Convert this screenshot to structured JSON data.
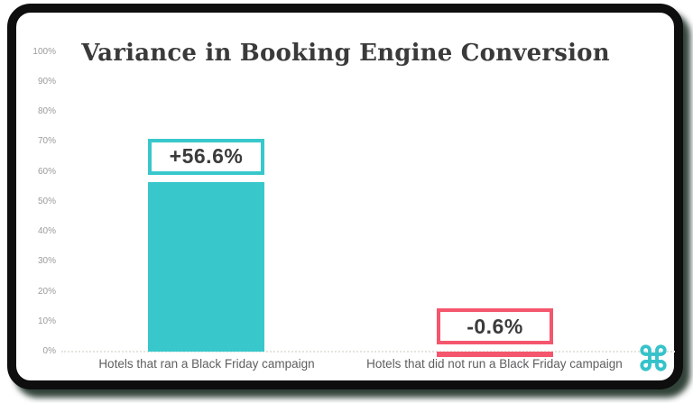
{
  "chart_data": {
    "type": "bar",
    "title": "Variance in Booking Engine Conversion",
    "categories": [
      "Hotels that ran a Black Friday campaign",
      "Hotels that did not run a Black Friday campaign"
    ],
    "values": [
      56.6,
      -0.6
    ],
    "data_labels": [
      "+56.6%",
      "-0.6%"
    ],
    "bar_colors": [
      "#38c8cc",
      "#f4566d"
    ],
    "yticks": [
      0,
      10,
      20,
      30,
      40,
      50,
      60,
      70,
      80,
      90,
      100
    ],
    "ytick_labels": [
      "0%",
      "10%",
      "20%",
      "30%",
      "40%",
      "50%",
      "60%",
      "70%",
      "80%",
      "90%",
      "100%"
    ],
    "ylim": [
      0,
      100
    ],
    "xlabel": "",
    "ylabel": "",
    "grid": false,
    "legend": false
  },
  "colors": {
    "title_text": "#3a3a3a",
    "tick_text": "#9b9b9b",
    "category_text": "#5e5e60",
    "value_text": "#3b3b3b",
    "axis_line": "#e4e4de",
    "frame": "#0e0e0e",
    "teal": "#38c8cc",
    "pink": "#f4566d"
  },
  "branding": {
    "logo_glyph": "⌘",
    "logo_color": "#36c2ca"
  }
}
